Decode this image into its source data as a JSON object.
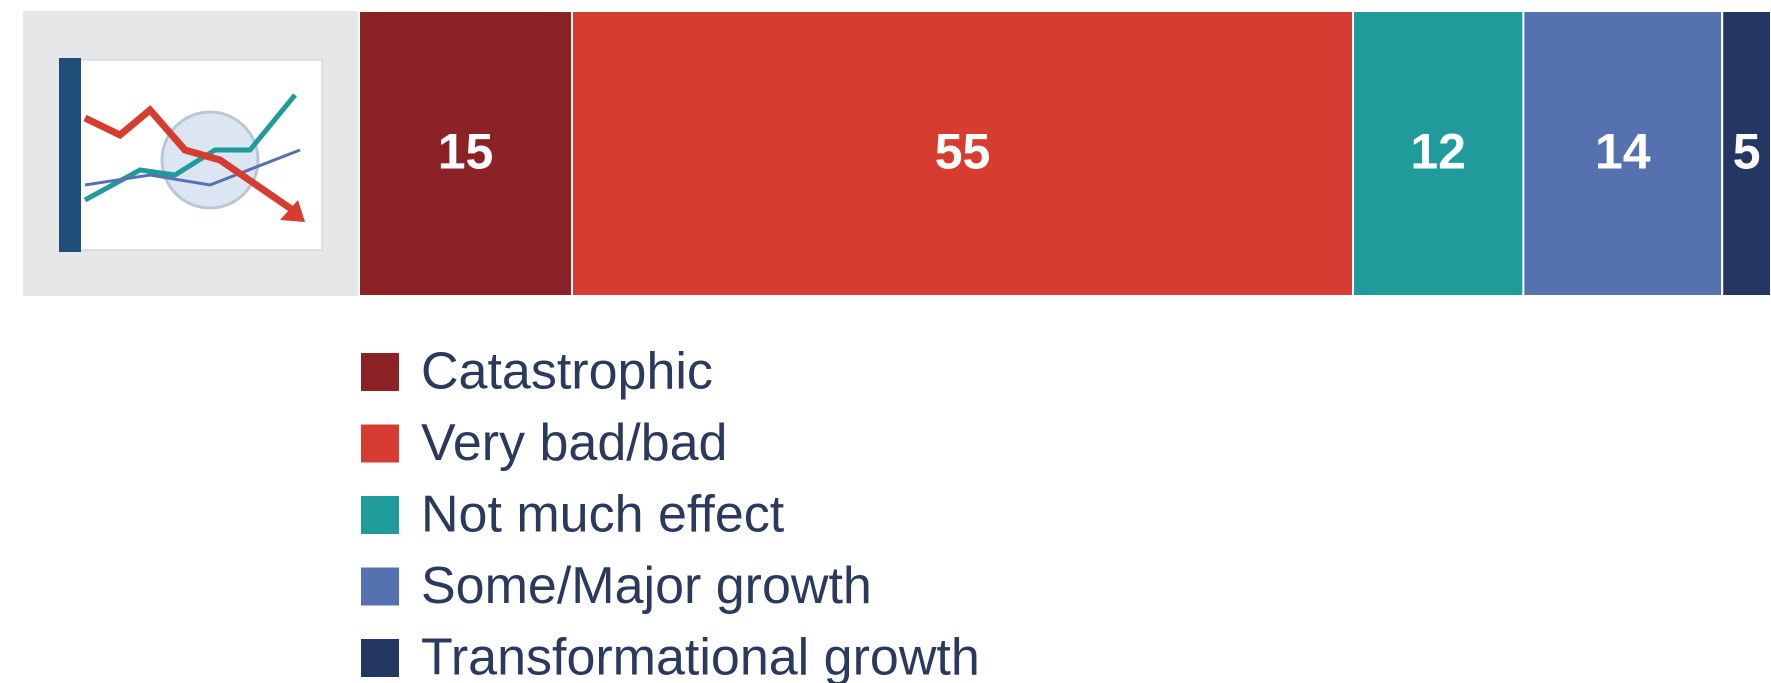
{
  "chart_data": {
    "type": "bar",
    "orientation": "horizontal",
    "stacked": true,
    "series": [
      {
        "name": "Catastrophic",
        "color": "#8b2326",
        "values": [
          15
        ]
      },
      {
        "name": "Very bad/bad",
        "color": "#d63d30",
        "values": [
          55
        ]
      },
      {
        "name": "Not much effect",
        "color": "#1f9b9b",
        "values": [
          12
        ]
      },
      {
        "name": "Some/Major growth",
        "color": "#5571b0",
        "values": [
          14
        ]
      },
      {
        "name": "Transformational growth",
        "color": "#233762",
        "values": [
          5
        ]
      }
    ]
  }
}
